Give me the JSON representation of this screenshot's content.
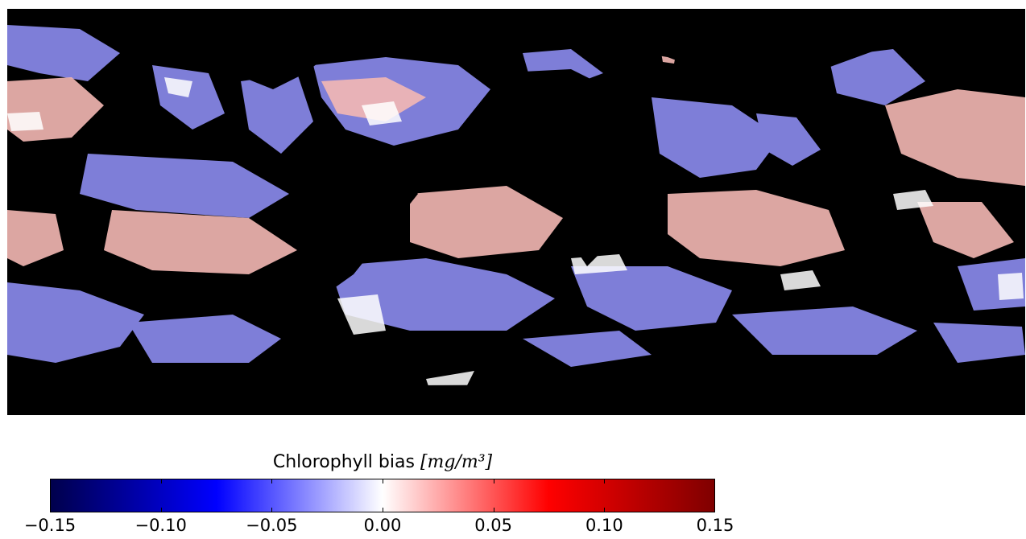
{
  "figure": {
    "type": "global-map",
    "background": "#000000"
  },
  "colorbar": {
    "title_text": "Chlorophyll bias",
    "title_unit": "[mg/m³]",
    "ticks": [
      "−0.15",
      "−0.10",
      "−0.05",
      "0.00",
      "0.05",
      "0.10",
      "0.15"
    ],
    "range": [
      -0.15,
      0.15
    ],
    "colormap": "seismic",
    "colors": {
      "min": "#00004c",
      "neg": "#0000ff",
      "zero": "#ffffff",
      "pos": "#ff0000",
      "max": "#7f0000"
    }
  },
  "map_colors": {
    "land_and_nodata": "#000000",
    "negative_bias": "#8c8cf0",
    "weak_negative": "#c8c8f8",
    "positive_bias": "#f4b8b4",
    "near_zero": "#ffffff"
  }
}
